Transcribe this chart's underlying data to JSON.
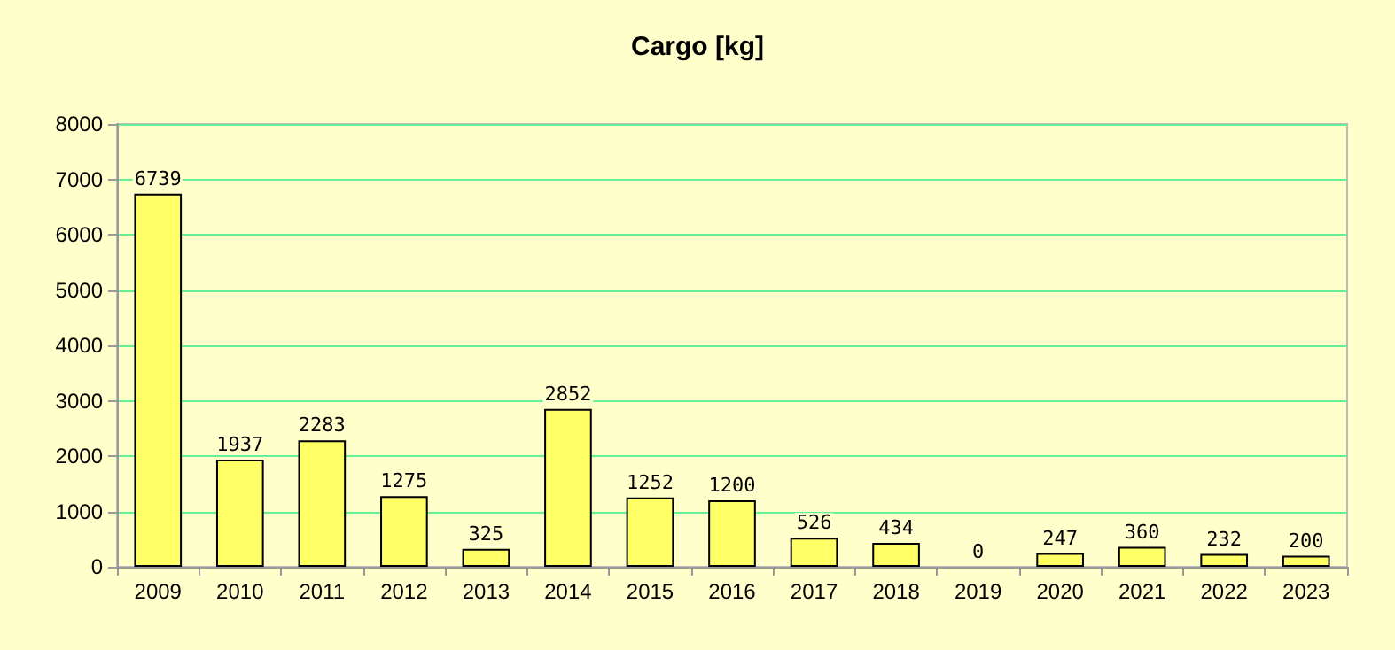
{
  "chart_data": {
    "type": "bar",
    "title": "Cargo [kg]",
    "categories": [
      "2009",
      "2010",
      "2011",
      "2012",
      "2013",
      "2014",
      "2015",
      "2016",
      "2017",
      "2018",
      "2019",
      "2020",
      "2021",
      "2022",
      "2023"
    ],
    "values": [
      6739,
      1937,
      2283,
      1275,
      325,
      2852,
      1252,
      1200,
      526,
      434,
      0,
      247,
      360,
      232,
      200
    ],
    "color": "#ffff66",
    "ylim": [
      0,
      8000
    ],
    "yticks": [
      0,
      1000,
      2000,
      3000,
      4000,
      5000,
      6000,
      7000,
      8000
    ],
    "grid": "y",
    "data_labels": true
  }
}
